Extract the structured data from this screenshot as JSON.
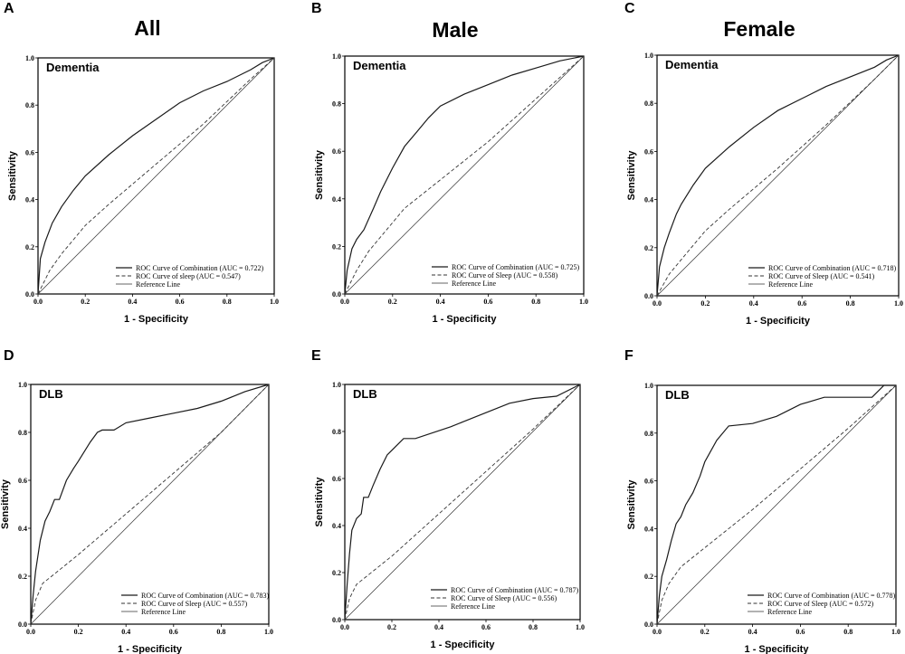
{
  "column_titles": [
    "All",
    "Male",
    "Female"
  ],
  "chart_data": [
    {
      "type": "line",
      "panel": "A",
      "outcome": "Dementia",
      "xlabel": "1 - Specificity",
      "ylabel": "Sensitivity",
      "xlim": [
        0,
        1
      ],
      "ylim": [
        0,
        1
      ],
      "ticks": [
        "0.0",
        "0.2",
        "0.4",
        "0.6",
        "0.8",
        "1.0"
      ],
      "legend": [
        "ROC Curve of Combination (AUC = 0.722)",
        "ROC Curve of sleep (AUC = 0.547)",
        "Reference Line"
      ],
      "series": [
        {
          "name": "ROC Curve of Combination",
          "style": "solid",
          "x": [
            0,
            0.01,
            0.03,
            0.06,
            0.1,
            0.15,
            0.2,
            0.3,
            0.4,
            0.5,
            0.6,
            0.7,
            0.8,
            0.9,
            0.95,
            1.0
          ],
          "y": [
            0,
            0.15,
            0.22,
            0.3,
            0.37,
            0.44,
            0.5,
            0.59,
            0.67,
            0.74,
            0.81,
            0.86,
            0.9,
            0.95,
            0.98,
            1.0
          ]
        },
        {
          "name": "ROC Curve of sleep",
          "style": "dashed",
          "x": [
            0,
            0.05,
            0.1,
            0.2,
            0.3,
            0.5,
            0.7,
            0.9,
            1.0
          ],
          "y": [
            0,
            0.1,
            0.17,
            0.29,
            0.38,
            0.55,
            0.72,
            0.91,
            1.0
          ]
        },
        {
          "name": "Reference Line",
          "style": "reference",
          "x": [
            0,
            1
          ],
          "y": [
            0,
            1
          ]
        }
      ]
    },
    {
      "type": "line",
      "panel": "B",
      "outcome": "Dementia",
      "xlabel": "1 - Specificity",
      "ylabel": "Sensitivity",
      "xlim": [
        0,
        1
      ],
      "ylim": [
        0,
        1
      ],
      "ticks": [
        "0.0",
        "0.2",
        "0.4",
        "0.6",
        "0.8",
        "1.0"
      ],
      "legend": [
        "ROC Curve of Combination (AUC = 0.725)",
        "ROC Curve of Sleep (AUC = 0.558)",
        "Reference Line"
      ],
      "series": [
        {
          "name": "ROC Curve of Combination",
          "style": "solid",
          "x": [
            0,
            0.01,
            0.03,
            0.05,
            0.08,
            0.12,
            0.15,
            0.2,
            0.25,
            0.3,
            0.35,
            0.4,
            0.5,
            0.6,
            0.7,
            0.8,
            0.9,
            1.0
          ],
          "y": [
            0,
            0.1,
            0.19,
            0.23,
            0.27,
            0.36,
            0.43,
            0.53,
            0.62,
            0.68,
            0.74,
            0.79,
            0.84,
            0.88,
            0.92,
            0.95,
            0.98,
            1.0
          ]
        },
        {
          "name": "ROC Curve of Sleep",
          "style": "dashed",
          "x": [
            0,
            0.05,
            0.1,
            0.2,
            0.25,
            0.4,
            0.6,
            0.8,
            1.0
          ],
          "y": [
            0,
            0.1,
            0.18,
            0.3,
            0.36,
            0.48,
            0.64,
            0.82,
            1.0
          ]
        },
        {
          "name": "Reference Line",
          "style": "reference",
          "x": [
            0,
            1
          ],
          "y": [
            0,
            1
          ]
        }
      ]
    },
    {
      "type": "line",
      "panel": "C",
      "outcome": "Dementia",
      "xlabel": "1 - Specificity",
      "ylabel": "Sensitivity",
      "xlim": [
        0,
        1
      ],
      "ylim": [
        0,
        1
      ],
      "ticks": [
        "0.0",
        "0.2",
        "0.4",
        "0.6",
        "0.8",
        "1.0"
      ],
      "legend": [
        "ROC Curve of Combination (AUC = 0.718)",
        "ROC Curve of Sleep (AUC = 0.541)",
        "Reference Line"
      ],
      "series": [
        {
          "name": "ROC Curve of Combination",
          "style": "solid",
          "x": [
            0,
            0.01,
            0.03,
            0.05,
            0.08,
            0.1,
            0.15,
            0.2,
            0.3,
            0.4,
            0.5,
            0.6,
            0.7,
            0.8,
            0.9,
            0.95,
            1.0
          ],
          "y": [
            0,
            0.12,
            0.2,
            0.26,
            0.34,
            0.38,
            0.46,
            0.53,
            0.62,
            0.7,
            0.77,
            0.82,
            0.87,
            0.91,
            0.95,
            0.98,
            1.0
          ]
        },
        {
          "name": "ROC Curve of Sleep",
          "style": "dashed",
          "x": [
            0,
            0.05,
            0.1,
            0.2,
            0.3,
            0.5,
            0.7,
            0.9,
            1.0
          ],
          "y": [
            0,
            0.09,
            0.15,
            0.27,
            0.36,
            0.53,
            0.71,
            0.9,
            1.0
          ]
        },
        {
          "name": "Reference Line",
          "style": "reference",
          "x": [
            0,
            1
          ],
          "y": [
            0,
            1
          ]
        }
      ]
    },
    {
      "type": "line",
      "panel": "D",
      "outcome": "DLB",
      "xlabel": "1 - Specificity",
      "ylabel": "Sensitivity",
      "xlim": [
        0,
        1
      ],
      "ylim": [
        0,
        1
      ],
      "ticks": [
        "0.0",
        "0.2",
        "0.4",
        "0.6",
        "0.8",
        "1.0"
      ],
      "legend": [
        "ROC Curve of Combination (AUC = 0.783)",
        "ROC Curve of Sleep (AUC = 0.557)",
        "Reference Line"
      ],
      "series": [
        {
          "name": "ROC Curve of Combination",
          "style": "solid",
          "x": [
            0,
            0.01,
            0.02,
            0.04,
            0.06,
            0.08,
            0.1,
            0.12,
            0.15,
            0.18,
            0.2,
            0.25,
            0.28,
            0.3,
            0.35,
            0.4,
            0.5,
            0.6,
            0.7,
            0.8,
            0.85,
            0.9,
            1.0
          ],
          "y": [
            0,
            0.12,
            0.22,
            0.35,
            0.43,
            0.47,
            0.52,
            0.52,
            0.6,
            0.65,
            0.68,
            0.76,
            0.8,
            0.81,
            0.81,
            0.84,
            0.86,
            0.88,
            0.9,
            0.93,
            0.95,
            0.97,
            1.0
          ]
        },
        {
          "name": "ROC Curve of Sleep",
          "style": "dashed",
          "x": [
            0,
            0.02,
            0.05,
            0.1,
            0.2,
            0.4,
            0.6,
            0.8,
            1.0
          ],
          "y": [
            0,
            0.1,
            0.17,
            0.21,
            0.29,
            0.46,
            0.63,
            0.8,
            1.0
          ]
        },
        {
          "name": "Reference Line",
          "style": "reference",
          "x": [
            0,
            1
          ],
          "y": [
            0,
            1
          ]
        }
      ]
    },
    {
      "type": "line",
      "panel": "E",
      "outcome": "DLB",
      "xlabel": "1 - Specificity",
      "ylabel": "Sensitivity",
      "xlim": [
        0,
        1
      ],
      "ylim": [
        0,
        1
      ],
      "ticks": [
        "0.0",
        "0.2",
        "0.4",
        "0.6",
        "0.8",
        "1.0"
      ],
      "legend": [
        "ROC Curve of Combination (AUC = 0.787)",
        "ROC Curve of Sleep (AUC = 0.556)",
        "Reference Line"
      ],
      "series": [
        {
          "name": "ROC Curve of Combination",
          "style": "solid",
          "x": [
            0,
            0.01,
            0.02,
            0.03,
            0.05,
            0.07,
            0.08,
            0.1,
            0.12,
            0.15,
            0.18,
            0.2,
            0.25,
            0.3,
            0.45,
            0.5,
            0.6,
            0.7,
            0.8,
            0.9,
            1.0
          ],
          "y": [
            0,
            0.15,
            0.28,
            0.38,
            0.43,
            0.45,
            0.52,
            0.52,
            0.57,
            0.64,
            0.7,
            0.72,
            0.77,
            0.77,
            0.82,
            0.84,
            0.88,
            0.92,
            0.94,
            0.95,
            1.0
          ]
        },
        {
          "name": "ROC Curve of Sleep",
          "style": "dashed",
          "x": [
            0,
            0.02,
            0.05,
            0.1,
            0.2,
            0.4,
            0.6,
            0.8,
            1.0
          ],
          "y": [
            0,
            0.09,
            0.15,
            0.19,
            0.27,
            0.45,
            0.63,
            0.81,
            1.0
          ]
        },
        {
          "name": "Reference Line",
          "style": "reference",
          "x": [
            0,
            1
          ],
          "y": [
            0,
            1
          ]
        }
      ]
    },
    {
      "type": "line",
      "panel": "F",
      "outcome": "DLB",
      "xlabel": "1 - Specificity",
      "ylabel": "Sensitivity",
      "xlim": [
        0,
        1
      ],
      "ylim": [
        0,
        1
      ],
      "ticks": [
        "0.0",
        "0.2",
        "0.4",
        "0.6",
        "0.8",
        "1.0"
      ],
      "legend": [
        "ROC Curve of Combination (AUC = 0.778)",
        "ROC Curve of Sleep (AUC = 0.572)",
        "Reference Line"
      ],
      "series": [
        {
          "name": "ROC Curve of Combination",
          "style": "solid",
          "x": [
            0,
            0.01,
            0.02,
            0.04,
            0.06,
            0.08,
            0.1,
            0.12,
            0.15,
            0.18,
            0.2,
            0.25,
            0.3,
            0.4,
            0.5,
            0.6,
            0.7,
            0.8,
            0.9,
            0.95,
            1.0
          ],
          "y": [
            0,
            0.12,
            0.2,
            0.27,
            0.35,
            0.42,
            0.45,
            0.5,
            0.55,
            0.62,
            0.68,
            0.77,
            0.83,
            0.84,
            0.87,
            0.92,
            0.95,
            0.95,
            0.95,
            1.0,
            1.0
          ]
        },
        {
          "name": "ROC Curve of Sleep",
          "style": "dashed",
          "x": [
            0,
            0.02,
            0.05,
            0.1,
            0.2,
            0.4,
            0.6,
            0.8,
            1.0
          ],
          "y": [
            0,
            0.1,
            0.17,
            0.24,
            0.32,
            0.48,
            0.65,
            0.82,
            1.0
          ]
        },
        {
          "name": "Reference Line",
          "style": "reference",
          "x": [
            0,
            1
          ],
          "y": [
            0,
            1
          ]
        }
      ]
    }
  ]
}
